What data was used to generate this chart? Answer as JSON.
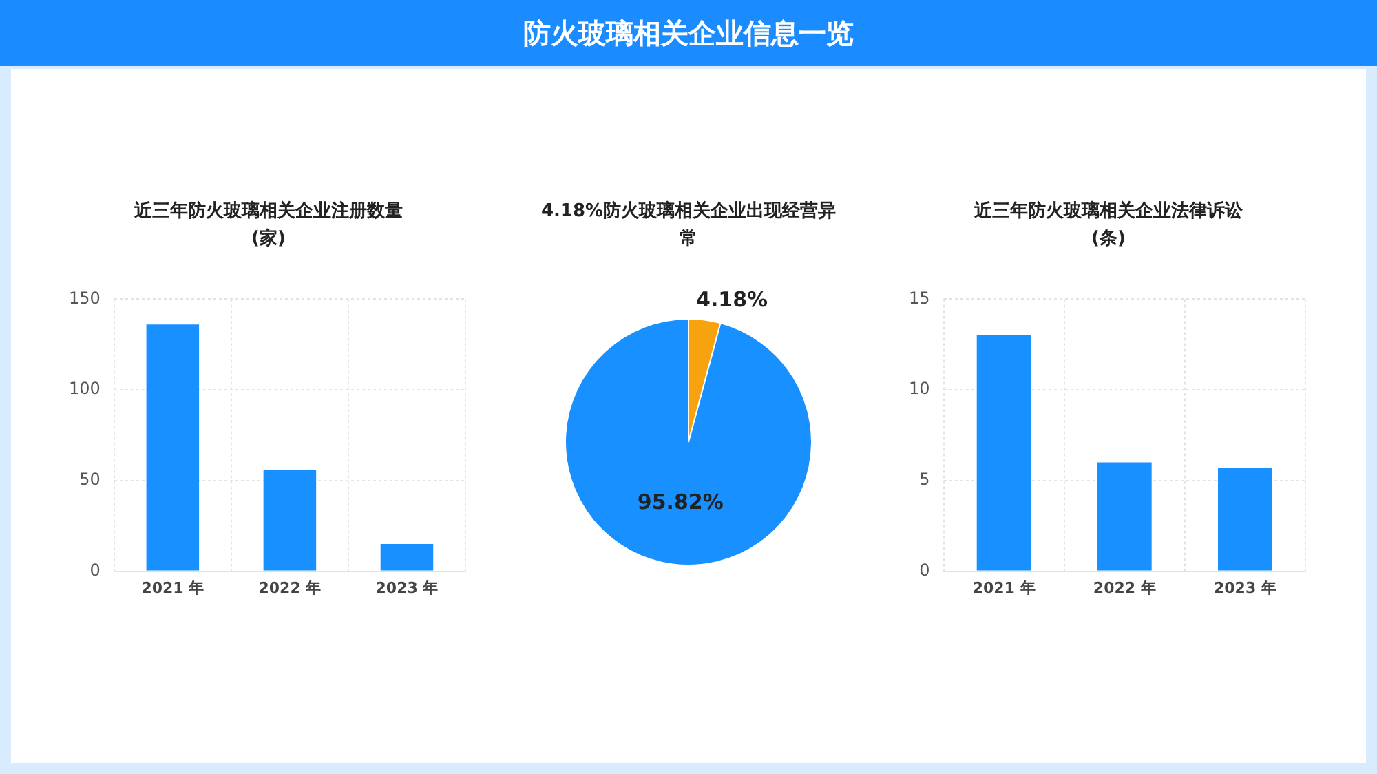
{
  "chart_data": [
    {
      "type": "other",
      "title": "防火玻璃相关企业信息一览"
    },
    {
      "type": "bar",
      "title": "近三年防火玻璃相关企业注册数量\n(家)",
      "categories": [
        "2021 年",
        "2022 年",
        "2023 年"
      ],
      "values": [
        136,
        56,
        15
      ],
      "color": "#1890ff",
      "ylim": [
        0,
        150
      ],
      "yticks": [
        0,
        50,
        100,
        150
      ],
      "grid": true
    },
    {
      "type": "pie",
      "title": "4.18%防火玻璃相关企业出现经营异常",
      "categories": [
        null,
        null
      ],
      "values": [
        4.18,
        95.82
      ],
      "colors": [
        "#f7a20f",
        "#1890ff"
      ],
      "value_labels": [
        "4.18%",
        "95.82%"
      ]
    },
    {
      "type": "bar",
      "title": "近三年防火玻璃相关企业法律诉讼\n(条)",
      "categories": [
        "2021 年",
        "2022 年",
        "2023 年"
      ],
      "values": [
        13,
        6,
        5.7
      ],
      "color": "#1890ff",
      "ylim": [
        0,
        15
      ],
      "yticks": [
        0,
        5,
        10,
        15
      ],
      "grid": true
    }
  ]
}
